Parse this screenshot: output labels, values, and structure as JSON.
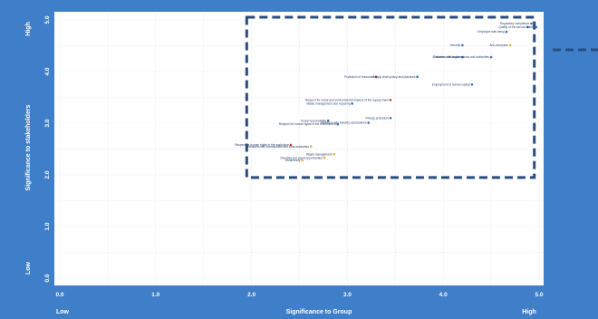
{
  "chart_data": {
    "type": "scatter",
    "title": "",
    "xlabel": "Significance to Group",
    "ylabel": "Significance to stakeholders",
    "x_low_label": "Low",
    "x_high_label": "High",
    "y_low_label": "Low",
    "y_high_label": "High",
    "xlim": [
      0,
      5
    ],
    "ylim": [
      0,
      5
    ],
    "xticks": [
      "0.0",
      "1.0",
      "2.0",
      "3.0",
      "4.0",
      "5.0"
    ],
    "yticks": [
      "0.0",
      "1.0",
      "2.0",
      "3.0",
      "4.0",
      "5.0"
    ],
    "grid": true,
    "highlight_box": {
      "x": [
        1.95,
        4.95
      ],
      "y": [
        1.95,
        5.0
      ],
      "style": "dashed"
    },
    "points": [
      {
        "x": 4.92,
        "y": 4.93,
        "label": "Regulatory compliance",
        "color": "#3a6fc4"
      },
      {
        "x": 4.88,
        "y": 4.86,
        "label": "Quality of the service",
        "color": "#3a6fc4"
      },
      {
        "x": 4.97,
        "y": 4.86,
        "label": "Safety",
        "color": "#3a6fc4"
      },
      {
        "x": 4.66,
        "y": 4.77,
        "label": "Employee well-being",
        "color": "#3a6fc4"
      },
      {
        "x": 4.2,
        "y": 4.51,
        "label": "Security",
        "color": "#3a6fc4"
      },
      {
        "x": 4.7,
        "y": 4.51,
        "label": "Anti-corruption",
        "color": "#e8b339"
      },
      {
        "x": 4.2,
        "y": 4.28,
        "label": "Customer satisfaction",
        "color": "#3a6fc4"
      },
      {
        "x": 4.5,
        "y": 4.28,
        "label": "Relations with organisations and authorities",
        "color": "#3a6fc4"
      },
      {
        "x": 3.3,
        "y": 3.9,
        "label": "Protection of resources",
        "color": "#d83b2e"
      },
      {
        "x": 3.73,
        "y": 3.9,
        "label": "Supply chain policy and practices",
        "color": "#3a6fc4"
      },
      {
        "x": 4.3,
        "y": 3.75,
        "label": "Employment of human capital",
        "color": "#3a6fc4"
      },
      {
        "x": 3.45,
        "y": 3.45,
        "label": "Respect for social and environmental impacts of the supply chain",
        "color": "#d83b2e"
      },
      {
        "x": 3.05,
        "y": 3.38,
        "label": "Waste management and recycling",
        "color": "#3a6fc4"
      },
      {
        "x": 3.45,
        "y": 3.1,
        "label": "Privacy protection",
        "color": "#3a6fc4"
      },
      {
        "x": 2.8,
        "y": 3.05,
        "label": "Social responsibility",
        "color": "#3a6fc4"
      },
      {
        "x": 3.22,
        "y": 3.01,
        "label": "Relations with industry associations",
        "color": "#3a6fc4"
      },
      {
        "x": 2.9,
        "y": 2.98,
        "label": "Respect for human rights in the environment",
        "color": "#3a6fc4"
      },
      {
        "x": 2.41,
        "y": 2.58,
        "label": "Respect for human rights in the workplace",
        "color": "#d83b2e"
      },
      {
        "x": 2.62,
        "y": 2.55,
        "label": "Relations with communities and local authorities",
        "color": "#e8b339"
      },
      {
        "x": 2.86,
        "y": 2.4,
        "label": "Waste management",
        "color": "#e8b339"
      },
      {
        "x": 2.76,
        "y": 2.33,
        "label": "Diversity and equal opportunities",
        "color": "#e8b339"
      },
      {
        "x": 2.53,
        "y": 2.28,
        "label": "Biodiversity",
        "color": "#e8b339"
      }
    ]
  }
}
